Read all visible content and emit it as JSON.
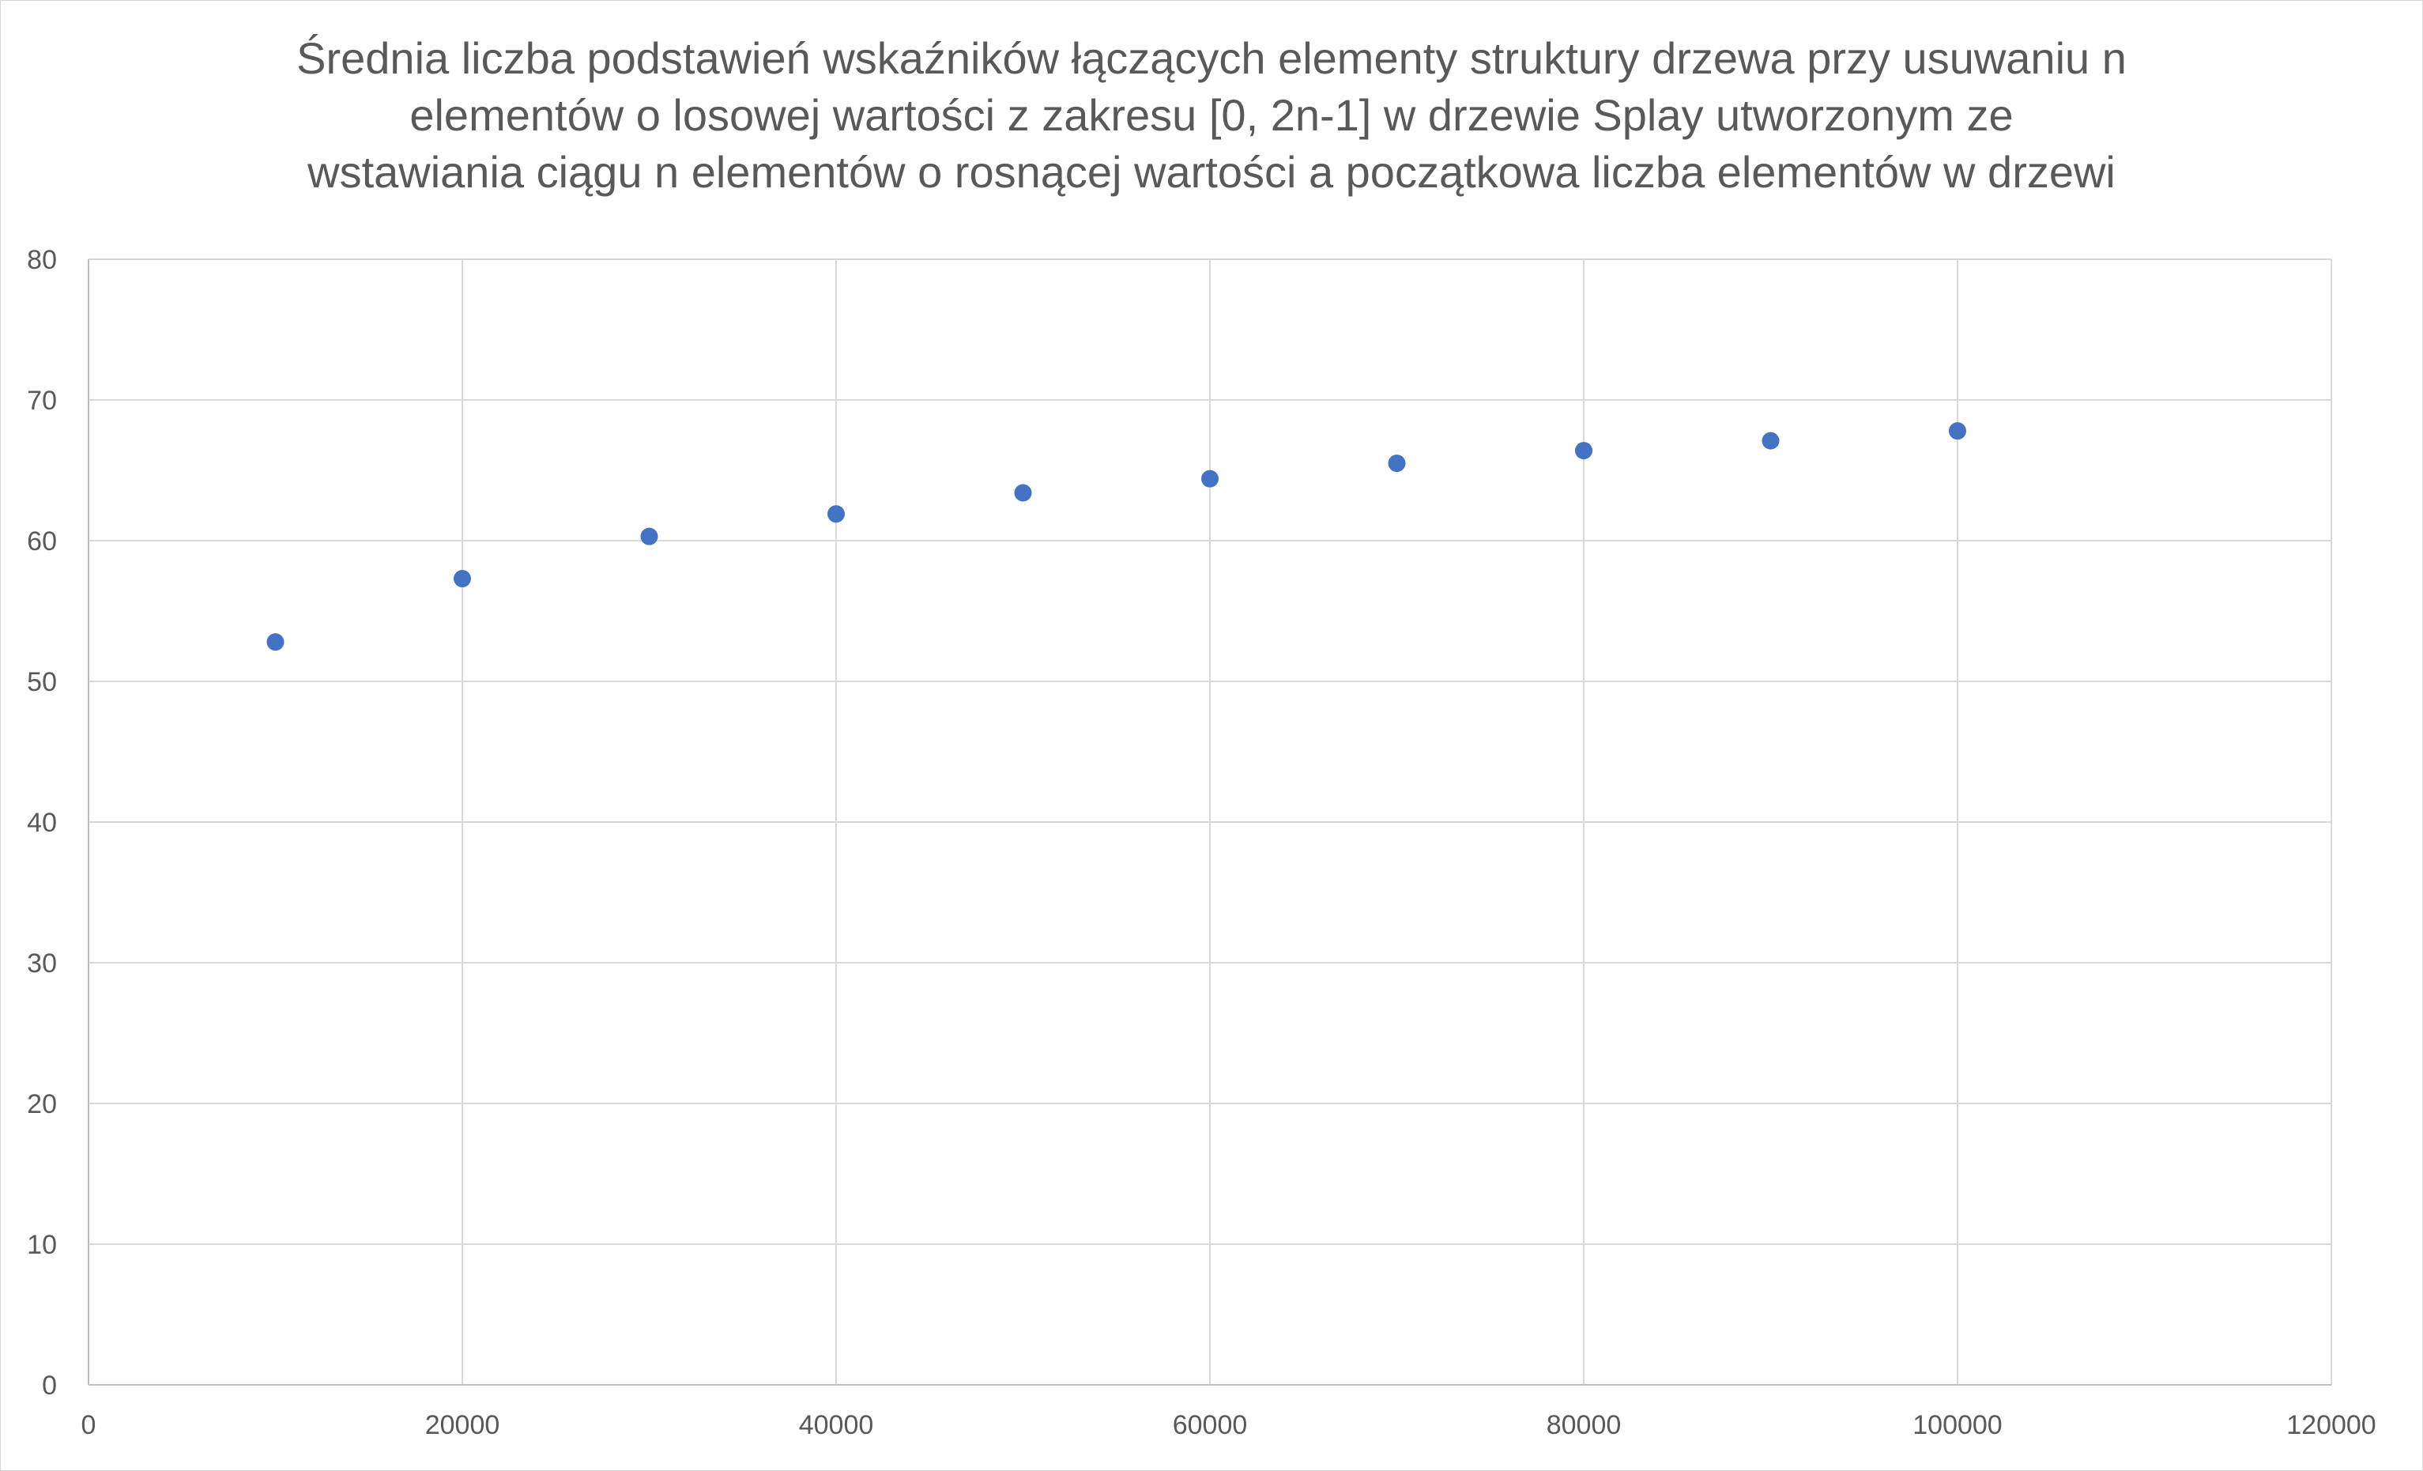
{
  "chart_data": {
    "type": "scatter",
    "title_lines": [
      "Średnia liczba podstawień wskaźników łączących elementy struktury drzewa przy usuwaniu n",
      "elementów o losowej wartości z zakresu [0, 2n-1] w drzewie Splay utworzonym ze",
      "wstawiania ciągu n elementów o rosnącej wartości a początkowa liczba elementów w drzewi"
    ],
    "xlabel": "",
    "ylabel": "",
    "xlim": [
      0,
      120000
    ],
    "ylim": [
      0,
      80
    ],
    "x_ticks": [
      0,
      20000,
      40000,
      60000,
      80000,
      100000,
      120000
    ],
    "y_ticks": [
      0,
      10,
      20,
      30,
      40,
      50,
      60,
      70,
      80
    ],
    "x_tick_labels": [
      "0",
      "20000",
      "40000",
      "60000",
      "80000",
      "100000",
      "120000"
    ],
    "y_tick_labels": [
      "0",
      "10",
      "20",
      "30",
      "40",
      "50",
      "60",
      "70",
      "80"
    ],
    "grid": true,
    "legend": "none",
    "series": [
      {
        "color": "#4472c4",
        "points": [
          {
            "x": 10000,
            "y": 52.8
          },
          {
            "x": 20000,
            "y": 57.3
          },
          {
            "x": 30000,
            "y": 60.3
          },
          {
            "x": 40000,
            "y": 61.9
          },
          {
            "x": 50000,
            "y": 63.4
          },
          {
            "x": 60000,
            "y": 64.4
          },
          {
            "x": 70000,
            "y": 65.5
          },
          {
            "x": 80000,
            "y": 66.4
          },
          {
            "x": 90000,
            "y": 67.1
          },
          {
            "x": 100000,
            "y": 67.8
          }
        ]
      }
    ],
    "grid_color": "#d9d9d9",
    "axis_color": "#bfbfbf",
    "text_color": "#595959"
  }
}
